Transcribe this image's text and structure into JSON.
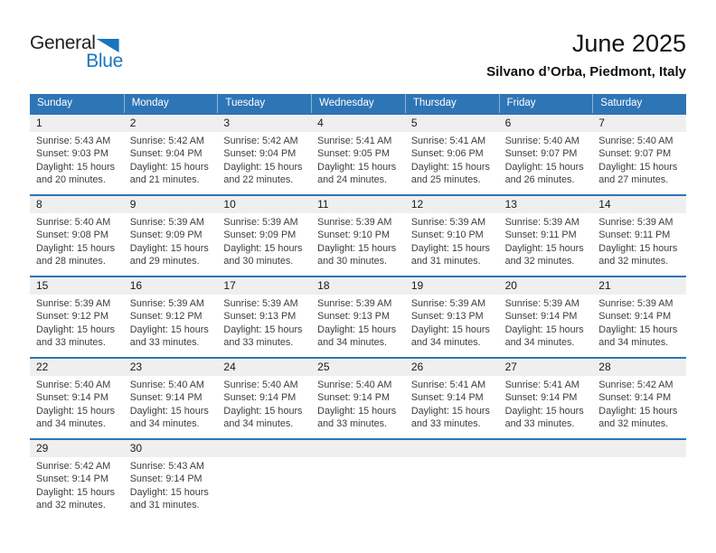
{
  "logo": {
    "line1": "General",
    "line2": "Blue"
  },
  "header": {
    "month_title": "June 2025",
    "location": "Silvano d’Orba, Piedmont, Italy"
  },
  "colors": {
    "header_blue": "#2E75B6",
    "logo_blue": "#1B75BC",
    "day_band_gray": "#EFEFEF"
  },
  "weekday_headers": [
    "Sunday",
    "Monday",
    "Tuesday",
    "Wednesday",
    "Thursday",
    "Friday",
    "Saturday"
  ],
  "weeks": [
    [
      {
        "day": "1",
        "lines": [
          "Sunrise: 5:43 AM",
          "Sunset: 9:03 PM",
          "Daylight: 15 hours",
          "and 20 minutes."
        ]
      },
      {
        "day": "2",
        "lines": [
          "Sunrise: 5:42 AM",
          "Sunset: 9:04 PM",
          "Daylight: 15 hours",
          "and 21 minutes."
        ]
      },
      {
        "day": "3",
        "lines": [
          "Sunrise: 5:42 AM",
          "Sunset: 9:04 PM",
          "Daylight: 15 hours",
          "and 22 minutes."
        ]
      },
      {
        "day": "4",
        "lines": [
          "Sunrise: 5:41 AM",
          "Sunset: 9:05 PM",
          "Daylight: 15 hours",
          "and 24 minutes."
        ]
      },
      {
        "day": "5",
        "lines": [
          "Sunrise: 5:41 AM",
          "Sunset: 9:06 PM",
          "Daylight: 15 hours",
          "and 25 minutes."
        ]
      },
      {
        "day": "6",
        "lines": [
          "Sunrise: 5:40 AM",
          "Sunset: 9:07 PM",
          "Daylight: 15 hours",
          "and 26 minutes."
        ]
      },
      {
        "day": "7",
        "lines": [
          "Sunrise: 5:40 AM",
          "Sunset: 9:07 PM",
          "Daylight: 15 hours",
          "and 27 minutes."
        ]
      }
    ],
    [
      {
        "day": "8",
        "lines": [
          "Sunrise: 5:40 AM",
          "Sunset: 9:08 PM",
          "Daylight: 15 hours",
          "and 28 minutes."
        ]
      },
      {
        "day": "9",
        "lines": [
          "Sunrise: 5:39 AM",
          "Sunset: 9:09 PM",
          "Daylight: 15 hours",
          "and 29 minutes."
        ]
      },
      {
        "day": "10",
        "lines": [
          "Sunrise: 5:39 AM",
          "Sunset: 9:09 PM",
          "Daylight: 15 hours",
          "and 30 minutes."
        ]
      },
      {
        "day": "11",
        "lines": [
          "Sunrise: 5:39 AM",
          "Sunset: 9:10 PM",
          "Daylight: 15 hours",
          "and 30 minutes."
        ]
      },
      {
        "day": "12",
        "lines": [
          "Sunrise: 5:39 AM",
          "Sunset: 9:10 PM",
          "Daylight: 15 hours",
          "and 31 minutes."
        ]
      },
      {
        "day": "13",
        "lines": [
          "Sunrise: 5:39 AM",
          "Sunset: 9:11 PM",
          "Daylight: 15 hours",
          "and 32 minutes."
        ]
      },
      {
        "day": "14",
        "lines": [
          "Sunrise: 5:39 AM",
          "Sunset: 9:11 PM",
          "Daylight: 15 hours",
          "and 32 minutes."
        ]
      }
    ],
    [
      {
        "day": "15",
        "lines": [
          "Sunrise: 5:39 AM",
          "Sunset: 9:12 PM",
          "Daylight: 15 hours",
          "and 33 minutes."
        ]
      },
      {
        "day": "16",
        "lines": [
          "Sunrise: 5:39 AM",
          "Sunset: 9:12 PM",
          "Daylight: 15 hours",
          "and 33 minutes."
        ]
      },
      {
        "day": "17",
        "lines": [
          "Sunrise: 5:39 AM",
          "Sunset: 9:13 PM",
          "Daylight: 15 hours",
          "and 33 minutes."
        ]
      },
      {
        "day": "18",
        "lines": [
          "Sunrise: 5:39 AM",
          "Sunset: 9:13 PM",
          "Daylight: 15 hours",
          "and 34 minutes."
        ]
      },
      {
        "day": "19",
        "lines": [
          "Sunrise: 5:39 AM",
          "Sunset: 9:13 PM",
          "Daylight: 15 hours",
          "and 34 minutes."
        ]
      },
      {
        "day": "20",
        "lines": [
          "Sunrise: 5:39 AM",
          "Sunset: 9:14 PM",
          "Daylight: 15 hours",
          "and 34 minutes."
        ]
      },
      {
        "day": "21",
        "lines": [
          "Sunrise: 5:39 AM",
          "Sunset: 9:14 PM",
          "Daylight: 15 hours",
          "and 34 minutes."
        ]
      }
    ],
    [
      {
        "day": "22",
        "lines": [
          "Sunrise: 5:40 AM",
          "Sunset: 9:14 PM",
          "Daylight: 15 hours",
          "and 34 minutes."
        ]
      },
      {
        "day": "23",
        "lines": [
          "Sunrise: 5:40 AM",
          "Sunset: 9:14 PM",
          "Daylight: 15 hours",
          "and 34 minutes."
        ]
      },
      {
        "day": "24",
        "lines": [
          "Sunrise: 5:40 AM",
          "Sunset: 9:14 PM",
          "Daylight: 15 hours",
          "and 34 minutes."
        ]
      },
      {
        "day": "25",
        "lines": [
          "Sunrise: 5:40 AM",
          "Sunset: 9:14 PM",
          "Daylight: 15 hours",
          "and 33 minutes."
        ]
      },
      {
        "day": "26",
        "lines": [
          "Sunrise: 5:41 AM",
          "Sunset: 9:14 PM",
          "Daylight: 15 hours",
          "and 33 minutes."
        ]
      },
      {
        "day": "27",
        "lines": [
          "Sunrise: 5:41 AM",
          "Sunset: 9:14 PM",
          "Daylight: 15 hours",
          "and 33 minutes."
        ]
      },
      {
        "day": "28",
        "lines": [
          "Sunrise: 5:42 AM",
          "Sunset: 9:14 PM",
          "Daylight: 15 hours",
          "and 32 minutes."
        ]
      }
    ],
    [
      {
        "day": "29",
        "lines": [
          "Sunrise: 5:42 AM",
          "Sunset: 9:14 PM",
          "Daylight: 15 hours",
          "and 32 minutes."
        ]
      },
      {
        "day": "30",
        "lines": [
          "Sunrise: 5:43 AM",
          "Sunset: 9:14 PM",
          "Daylight: 15 hours",
          "and 31 minutes."
        ]
      },
      {
        "day": "",
        "lines": []
      },
      {
        "day": "",
        "lines": []
      },
      {
        "day": "",
        "lines": []
      },
      {
        "day": "",
        "lines": []
      },
      {
        "day": "",
        "lines": []
      }
    ]
  ]
}
